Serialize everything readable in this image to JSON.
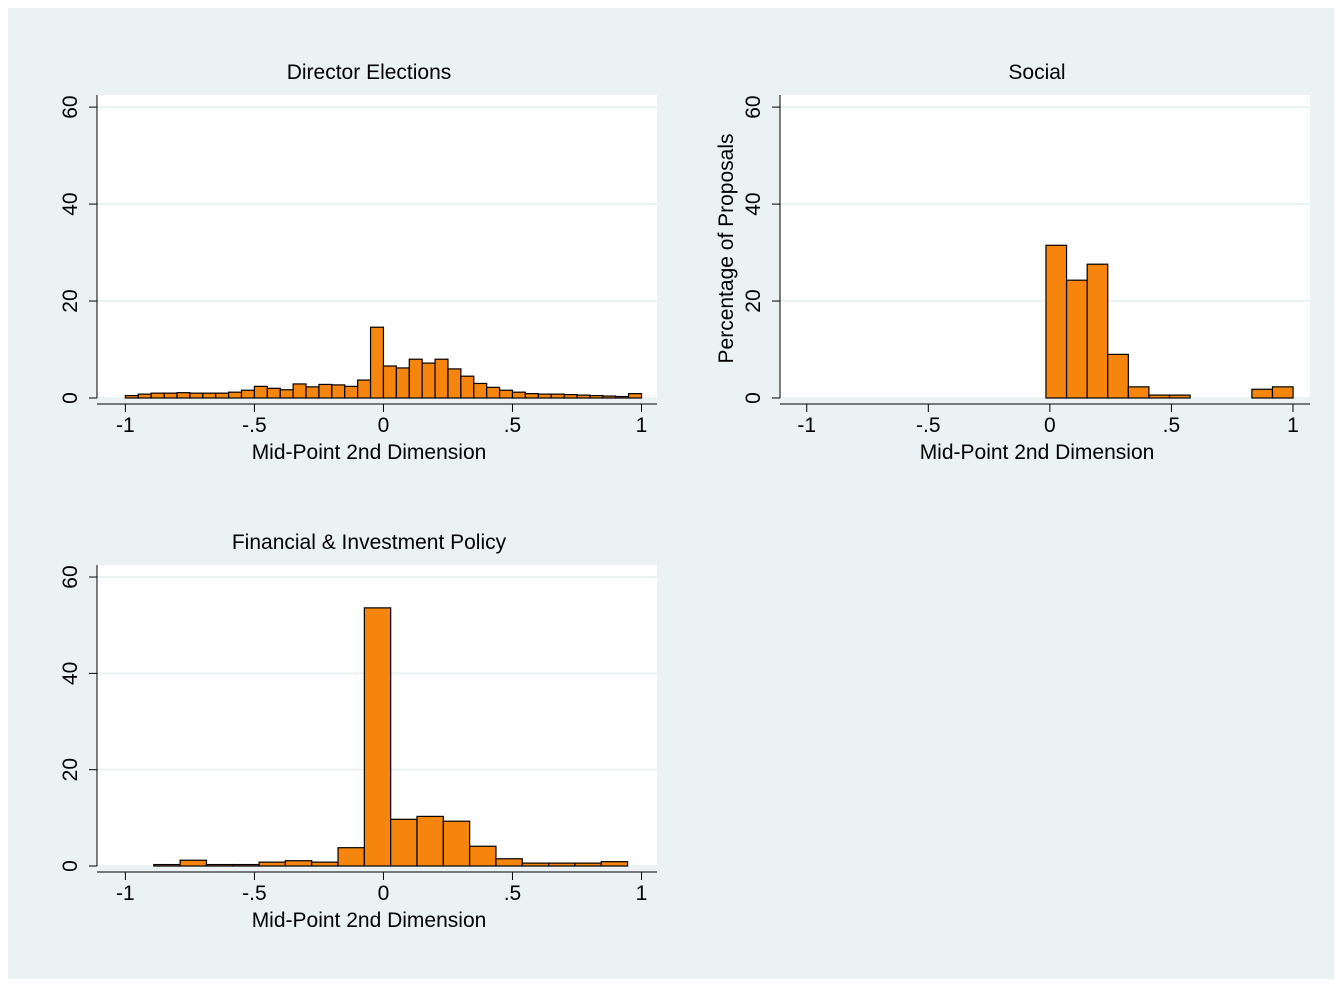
{
  "chart_data": [
    {
      "type": "histogram",
      "title": "Director Elections",
      "x_label": "Mid-Point 2nd Dimension",
      "color": "#f5850c",
      "grid": true,
      "bins": [
        -1,
        -0.95,
        -0.9,
        -0.85,
        -0.8,
        -0.75,
        -0.7,
        -0.65,
        -0.6,
        -0.55,
        -0.5,
        -0.45,
        -0.4,
        -0.35,
        -0.3,
        -0.25,
        -0.2,
        -0.15,
        -0.1,
        -0.05,
        0,
        0.05,
        0.1,
        0.15,
        0.2,
        0.25,
        0.3,
        0.35,
        0.4,
        0.45,
        0.5,
        0.55,
        0.6,
        0.65,
        0.7,
        0.75,
        0.8,
        0.85,
        0.9,
        0.95,
        1
      ],
      "values": [
        0.5,
        0.8,
        1,
        1,
        1.1,
        1,
        1,
        1,
        1.2,
        1.6,
        2.4,
        2,
        1.7,
        2.9,
        2.3,
        2.8,
        2.7,
        2.4,
        3.7,
        14.6,
        6.6,
        6.2,
        8,
        7.2,
        8,
        6,
        4.5,
        3,
        2.2,
        1.6,
        1.2,
        0.9,
        0.8,
        0.8,
        0.7,
        0.6,
        0.5,
        0.4,
        0.3,
        0.9
      ],
      "xlim": [
        -1.11,
        1.06
      ],
      "xticks": [
        -1,
        {
          "value": -0.5,
          "label": "-.5"
        },
        0,
        {
          "value": 0.5,
          "label": ".5"
        },
        1
      ],
      "ylim": [
        0,
        62.5
      ],
      "yticks": [
        0,
        20,
        40,
        60
      ]
    },
    {
      "type": "histogram",
      "title": "Social",
      "x_label": "Mid-Point 2nd Dimension",
      "y_label": "Percentage of Proposals",
      "color": "#f5850c",
      "grid": true,
      "bins": [
        -0.016,
        0.0687,
        0.1534,
        0.2381,
        0.3228,
        0.4075,
        0.4922,
        0.5769,
        0.6616,
        0.7463,
        0.831,
        0.9157,
        1.0004
      ],
      "values": [
        31.5,
        24.3,
        27.6,
        9,
        2.3,
        0.6,
        0.6,
        0,
        0,
        0,
        1.8,
        2.3
      ],
      "xlim": [
        -1.11,
        1.07
      ],
      "xticks": [
        -1,
        {
          "value": -0.5,
          "label": "-.5"
        },
        0,
        {
          "value": 0.5,
          "label": ".5"
        },
        1
      ],
      "ylim": [
        0,
        62.5
      ],
      "yticks": [
        0,
        20,
        40,
        60
      ]
    },
    {
      "type": "histogram",
      "title": "Financial & Investment Policy",
      "x_label": "Mid-Point 2nd Dimension",
      "color": "#f5850c",
      "grid": true,
      "bins": [
        -0.89,
        -0.788,
        -0.686,
        -0.584,
        -0.482,
        -0.38,
        -0.278,
        -0.176,
        -0.074,
        0.028,
        0.13,
        0.232,
        0.334,
        0.436,
        0.538,
        0.64,
        0.742,
        0.844,
        0.946
      ],
      "values": [
        0.3,
        1.2,
        0.3,
        0.3,
        0.8,
        1.1,
        0.8,
        3.8,
        53.6,
        9.7,
        10.3,
        9.3,
        4.1,
        1.5,
        0.6,
        0.6,
        0.6,
        0.9
      ],
      "xlim": [
        -1.11,
        1.06
      ],
      "xticks": [
        -1,
        {
          "value": -0.5,
          "label": "-.5"
        },
        0,
        {
          "value": 0.5,
          "label": ".5"
        },
        1
      ],
      "ylim": [
        0,
        62.5
      ],
      "yticks": [
        0,
        20,
        40,
        60
      ]
    }
  ]
}
